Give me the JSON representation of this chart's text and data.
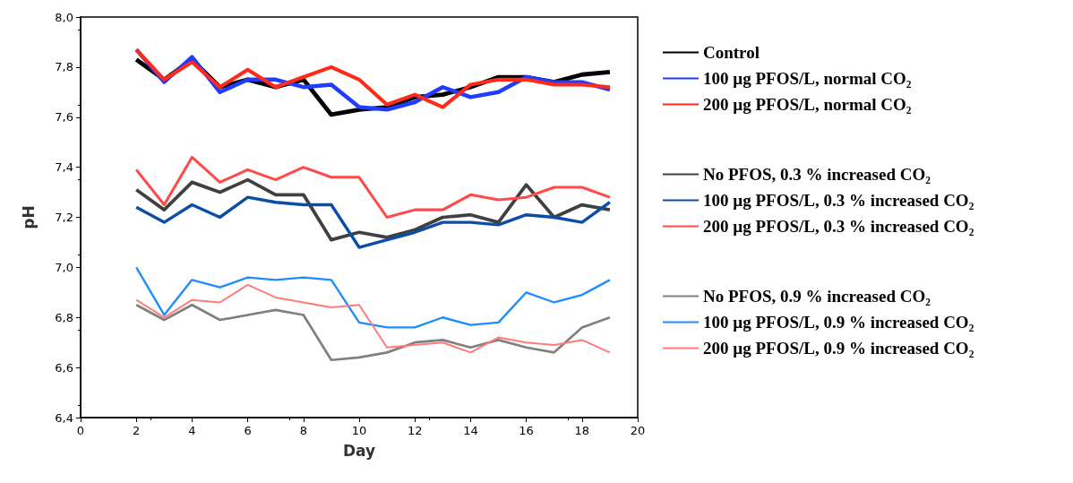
{
  "chart_data": {
    "type": "line",
    "xlabel": "Day",
    "ylabel": "pH",
    "x": [
      2,
      3,
      4,
      5,
      6,
      7,
      8,
      9,
      10,
      11,
      12,
      13,
      14,
      15,
      16,
      17,
      18,
      19
    ],
    "xlim": [
      0,
      20
    ],
    "xticks": [
      0,
      2,
      4,
      6,
      8,
      10,
      12,
      14,
      16,
      18,
      20
    ],
    "ylim": [
      6.4,
      8.0
    ],
    "yticks": [
      {
        "value": 6.4,
        "label": "6,4"
      },
      {
        "value": 6.6,
        "label": "6,6"
      },
      {
        "value": 6.8,
        "label": "6,8"
      },
      {
        "value": 7.0,
        "label": "7,0"
      },
      {
        "value": 7.2,
        "label": "7,2"
      },
      {
        "value": 7.4,
        "label": "7,4"
      },
      {
        "value": 7.6,
        "label": "7,6"
      },
      {
        "value": 7.8,
        "label": "7,8"
      },
      {
        "value": 8.0,
        "label": "8,0"
      }
    ],
    "grid": false,
    "legend": "right",
    "marker": "none",
    "line_style": "solid",
    "series": [
      {
        "name": "Control",
        "color": "#000000",
        "values": [
          7.83,
          7.75,
          7.83,
          7.72,
          7.75,
          7.72,
          7.75,
          7.61,
          7.63,
          7.64,
          7.68,
          7.69,
          7.72,
          7.76,
          7.76,
          7.74,
          7.77,
          7.78
        ]
      },
      {
        "name": "100 µg PFOS/L, normal CO₂",
        "color": "#1f3cff",
        "values": [
          7.87,
          7.74,
          7.84,
          7.7,
          7.75,
          7.75,
          7.72,
          7.73,
          7.64,
          7.63,
          7.66,
          7.72,
          7.68,
          7.7,
          7.76,
          7.74,
          7.74,
          7.71
        ]
      },
      {
        "name": "200 µg PFOS/L, normal CO₂",
        "color": "#ff2a1a",
        "values": [
          7.87,
          7.75,
          7.82,
          7.72,
          7.79,
          7.72,
          7.76,
          7.8,
          7.75,
          7.65,
          7.69,
          7.64,
          7.73,
          7.75,
          7.75,
          7.73,
          7.73,
          7.72
        ]
      },
      {
        "name": "No PFOS, 0.3 % increased CO₂",
        "color": "#404040",
        "values": [
          7.31,
          7.23,
          7.34,
          7.3,
          7.35,
          7.29,
          7.29,
          7.11,
          7.14,
          7.12,
          7.15,
          7.2,
          7.21,
          7.18,
          7.33,
          7.2,
          7.25,
          7.23
        ]
      },
      {
        "name": "100 µg PFOS/L, 0.3 % increased CO₂",
        "color": "#0a4ea8",
        "values": [
          7.24,
          7.18,
          7.25,
          7.2,
          7.28,
          7.26,
          7.25,
          7.25,
          7.08,
          7.11,
          7.14,
          7.18,
          7.18,
          7.17,
          7.21,
          7.2,
          7.18,
          7.26
        ]
      },
      {
        "name": "200 µg PFOS/L, 0.3 % increased CO₂",
        "color": "#ff4a4a",
        "values": [
          7.39,
          7.25,
          7.44,
          7.34,
          7.39,
          7.35,
          7.4,
          7.36,
          7.36,
          7.2,
          7.23,
          7.23,
          7.29,
          7.27,
          7.28,
          7.32,
          7.32,
          7.28
        ]
      },
      {
        "name": "No PFOS, 0.9 % increased CO₂",
        "color": "#808080",
        "values": [
          6.85,
          6.79,
          6.85,
          6.79,
          6.81,
          6.83,
          6.81,
          6.63,
          6.64,
          6.66,
          6.7,
          6.71,
          6.68,
          6.71,
          6.68,
          6.66,
          6.76,
          6.8
        ]
      },
      {
        "name": "100 µg PFOS/L, 0.9 % increased CO₂",
        "color": "#1e8cff",
        "values": [
          7.0,
          6.81,
          6.95,
          6.92,
          6.96,
          6.95,
          6.96,
          6.95,
          6.78,
          6.76,
          6.76,
          6.8,
          6.77,
          6.78,
          6.9,
          6.86,
          6.89,
          6.95
        ]
      },
      {
        "name": "200 µg PFOS/L, 0.9 % increased CO₂",
        "color": "#ff7b7b",
        "values": [
          6.87,
          6.8,
          6.87,
          6.86,
          6.93,
          6.88,
          6.86,
          6.84,
          6.85,
          6.68,
          6.69,
          6.7,
          6.66,
          6.72,
          6.7,
          6.69,
          6.71,
          6.66
        ]
      }
    ]
  }
}
